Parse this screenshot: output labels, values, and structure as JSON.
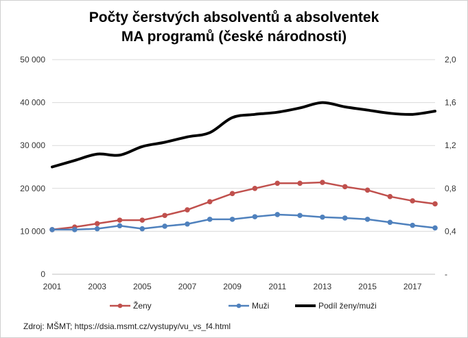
{
  "chart_data": {
    "type": "line",
    "title_line1": "Počty čerstvých absolventů a absolventek",
    "title_line2": "MA programů (české národnosti)",
    "x": [
      2001,
      2002,
      2003,
      2004,
      2005,
      2006,
      2007,
      2008,
      2009,
      2010,
      2011,
      2012,
      2013,
      2014,
      2015,
      2016,
      2017,
      2018
    ],
    "x_tick_labels": [
      "2001",
      "2003",
      "2005",
      "2007",
      "2009",
      "2011",
      "2013",
      "2015",
      "2017"
    ],
    "xlim": [
      2001,
      2018
    ],
    "ylim_left": [
      0,
      50000
    ],
    "y_ticks_left": [
      "0",
      "10 000",
      "20 000",
      "30 000",
      "40 000",
      "50 000"
    ],
    "ylim_right": [
      0,
      2.0
    ],
    "y_ticks_right": [
      "-",
      "0,4",
      "0,8",
      "1,2",
      "1,6",
      "2,0"
    ],
    "grid": "horizontal",
    "legend_position": "bottom",
    "series": [
      {
        "name": "Ženy",
        "axis": "left",
        "color": "#c0504d",
        "marker": "circle",
        "values": [
          10400,
          11000,
          11800,
          12600,
          12600,
          13700,
          15000,
          16900,
          18800,
          20000,
          21200,
          21200,
          21400,
          20400,
          19600,
          18100,
          17100,
          16400
        ]
      },
      {
        "name": "Muži",
        "axis": "left",
        "color": "#4f81bd",
        "marker": "circle",
        "values": [
          10400,
          10400,
          10600,
          11300,
          10600,
          11200,
          11700,
          12800,
          12800,
          13400,
          13900,
          13700,
          13300,
          13100,
          12800,
          12100,
          11400,
          10800
        ]
      },
      {
        "name": "Podíl ženy/muži",
        "axis": "right",
        "color": "#000000",
        "marker": "none",
        "values": [
          1.0,
          1.06,
          1.12,
          1.11,
          1.19,
          1.23,
          1.28,
          1.32,
          1.46,
          1.49,
          1.51,
          1.55,
          1.6,
          1.56,
          1.53,
          1.5,
          1.49,
          1.52
        ]
      }
    ]
  },
  "source": "Zdroj: MŠMT; https://dsia.msmt.cz/vystupy/vu_vs_f4.html"
}
